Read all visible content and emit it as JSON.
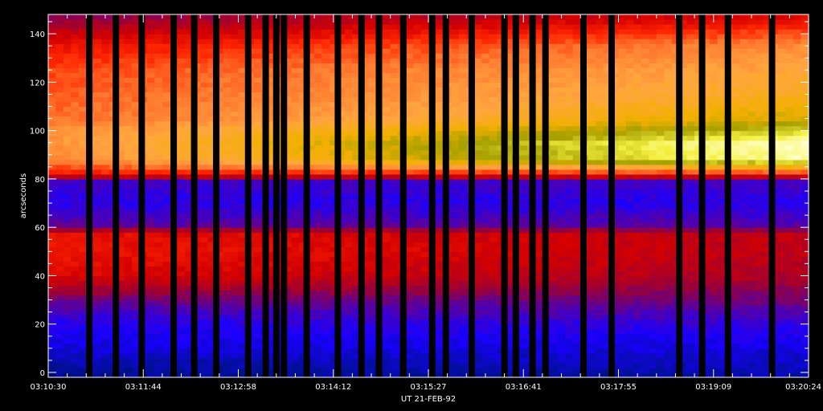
{
  "chart_data": {
    "type": "heatmap",
    "title": "",
    "xlabel": "UT  21-FEB-92",
    "ylabel": "arcseconds",
    "x_tick_labels": [
      "03:10:30",
      "03:11:44",
      "03:12:58",
      "03:14:12",
      "03:15:27",
      "03:16:41",
      "03:17:55",
      "03:19:09",
      "03:20:24"
    ],
    "y_ticks": [
      0,
      20,
      40,
      60,
      80,
      100,
      120,
      140
    ],
    "ylim": [
      -2,
      148
    ],
    "colormap": [
      "#000000",
      "#00108f",
      "#1a00ff",
      "#5500a5",
      "#9a0037",
      "#d40000",
      "#ff2500",
      "#ff7a30",
      "#ffa640",
      "#f2b000",
      "#a6a000",
      "#f4f040",
      "#ffffc8"
    ],
    "data_gaps_time_fraction": [
      0.054,
      0.089,
      0.123,
      0.165,
      0.192,
      0.221,
      0.263,
      0.286,
      0.3,
      0.31,
      0.34,
      0.381,
      0.412,
      0.435,
      0.467,
      0.505,
      0.523,
      0.557,
      0.6,
      0.615,
      0.637,
      0.654,
      0.704,
      0.741,
      0.83,
      0.86,
      0.894,
      0.952
    ],
    "profile_arcsec": [
      0,
      10,
      20,
      30,
      40,
      50,
      58,
      60,
      70,
      79,
      82,
      88,
      95,
      100,
      105,
      115,
      125,
      135,
      148
    ],
    "profile_start": [
      1,
      1.7,
      2.1,
      3.3,
      5.2,
      5.6,
      5.4,
      3.2,
      2.2,
      2.6,
      5.6,
      7.3,
      7.6,
      7.6,
      6.9,
      6.6,
      6.4,
      5.5,
      3.6
    ],
    "profile_end": [
      1.3,
      1.7,
      2.4,
      3.4,
      4.3,
      4.6,
      4.6,
      3.1,
      2.2,
      2.7,
      5.8,
      11.8,
      12,
      10.6,
      9.4,
      8.6,
      8.1,
      7.4,
      5.1
    ]
  }
}
